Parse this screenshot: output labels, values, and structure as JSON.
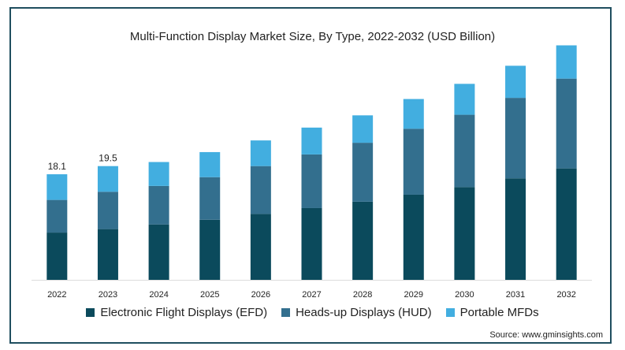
{
  "chart_data": {
    "type": "bar",
    "stacked": true,
    "title": "Multi-Function Display Market Size, By Type, 2022-2032 (USD Billion)",
    "categories": [
      "2022",
      "2023",
      "2024",
      "2025",
      "2026",
      "2027",
      "2028",
      "2029",
      "2030",
      "2031",
      "2032"
    ],
    "series": [
      {
        "name": "Electronic Flight Displays (EFD)",
        "color": "#0b4a5c",
        "values": [
          8.1,
          8.7,
          9.5,
          10.3,
          11.3,
          12.3,
          13.4,
          14.6,
          15.9,
          17.4,
          19.1
        ]
      },
      {
        "name": "Heads-up Displays (HUD)",
        "color": "#336f8e",
        "values": [
          5.6,
          6.4,
          6.6,
          7.3,
          8.2,
          9.2,
          10.1,
          11.3,
          12.4,
          13.8,
          15.4
        ]
      },
      {
        "name": "Portable MFDs",
        "color": "#42aee0",
        "values": [
          4.4,
          4.4,
          4.1,
          4.3,
          4.4,
          4.6,
          4.7,
          5.1,
          5.3,
          5.5,
          5.7
        ]
      }
    ],
    "data_labels": [
      {
        "category": "2022",
        "text": "18.1"
      },
      {
        "category": "2023",
        "text": "19.5"
      }
    ],
    "ylim": [
      0,
      45
    ],
    "grid": false,
    "legend_position": "bottom"
  },
  "source": "Source: www.gminsights.com"
}
